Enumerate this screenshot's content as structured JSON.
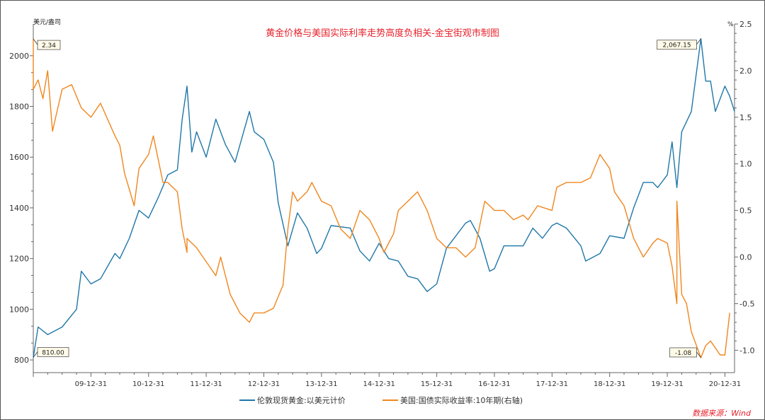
{
  "chart_data": {
    "type": "line",
    "title": "黄金价格与美国实际利率走势高度负相关-金宝街观市制图",
    "left_axis": {
      "unit_label": "美元/盎司",
      "ylim": [
        750,
        2125
      ],
      "ticks": [
        800,
        1000,
        1200,
        1400,
        1600,
        1800,
        2000
      ],
      "tick_labels": [
        "800",
        "1000",
        "1200",
        "1400",
        "1600",
        "1800",
        "2000"
      ]
    },
    "right_axis": {
      "unit_label": "%",
      "ylim": [
        -1.24,
        2.5
      ],
      "ticks": [
        -1.0,
        -0.5,
        0.0,
        0.5,
        1.0,
        1.5,
        2.0,
        2.5
      ],
      "tick_labels": [
        "-1.0",
        "-0.5",
        "0.0",
        "0.5",
        "1.0",
        "1.5",
        "2.0",
        "2.5"
      ]
    },
    "x_axis": {
      "range": [
        "2009-01",
        "2021-02"
      ],
      "tick_labels": [
        "09-12-31",
        "10-12-31",
        "11-12-31",
        "12-12-31",
        "13-12-31",
        "14-12-31",
        "15-12-31",
        "16-12-31",
        "17-12-31",
        "18-12-31",
        "19-12-31",
        "20-12-31"
      ]
    },
    "grid": false,
    "legend_placement": "bottom",
    "series": [
      {
        "name": "伦敦现货黄金:以美元计价",
        "axis": "left",
        "color": "#1f77a8",
        "x": [
          "2009-01",
          "2009-02",
          "2009-04",
          "2009-07",
          "2009-10",
          "2009-11",
          "2010-01",
          "2010-03",
          "2010-06",
          "2010-07",
          "2010-09",
          "2010-11",
          "2011-01",
          "2011-03",
          "2011-05",
          "2011-07",
          "2011-08",
          "2011-09",
          "2011-10",
          "2011-11",
          "2012-01",
          "2012-03",
          "2012-05",
          "2012-07",
          "2012-10",
          "2012-11",
          "2013-01",
          "2013-03",
          "2013-04",
          "2013-06",
          "2013-08",
          "2013-10",
          "2013-12",
          "2014-01",
          "2014-03",
          "2014-07",
          "2014-09",
          "2014-11",
          "2015-01",
          "2015-03",
          "2015-05",
          "2015-07",
          "2015-09",
          "2015-11",
          "2016-01",
          "2016-03",
          "2016-07",
          "2016-08",
          "2016-10",
          "2016-12",
          "2017-01",
          "2017-03",
          "2017-07",
          "2017-09",
          "2017-11",
          "2018-01",
          "2018-02",
          "2018-04",
          "2018-07",
          "2018-08",
          "2018-11",
          "2019-01",
          "2019-04",
          "2019-06",
          "2019-08",
          "2019-10",
          "2019-11",
          "2020-01",
          "2020-02",
          "2020-03",
          "2020-04",
          "2020-06",
          "2020-08",
          "2020-09",
          "2020-10",
          "2020-11",
          "2021-01",
          "2021-02",
          "2021-03"
        ],
        "values": [
          810,
          930,
          900,
          930,
          1000,
          1150,
          1100,
          1120,
          1220,
          1200,
          1280,
          1390,
          1360,
          1440,
          1530,
          1550,
          1750,
          1880,
          1620,
          1700,
          1600,
          1750,
          1650,
          1580,
          1780,
          1700,
          1670,
          1580,
          1420,
          1250,
          1380,
          1320,
          1220,
          1240,
          1330,
          1320,
          1230,
          1190,
          1260,
          1200,
          1190,
          1130,
          1120,
          1070,
          1100,
          1240,
          1340,
          1350,
          1280,
          1150,
          1160,
          1250,
          1250,
          1320,
          1280,
          1330,
          1340,
          1320,
          1250,
          1190,
          1220,
          1290,
          1280,
          1400,
          1500,
          1500,
          1480,
          1530,
          1660,
          1480,
          1700,
          1780,
          2067.15,
          1900,
          1900,
          1780,
          1880,
          1840,
          1780
        ]
      },
      {
        "name": "美国:国债实际收益率:10年期(右轴)",
        "axis": "right",
        "color": "#f0861e",
        "x": [
          "2009-01",
          "2009-01",
          "2009-02",
          "2009-03",
          "2009-04",
          "2009-05",
          "2009-07",
          "2009-09",
          "2009-11",
          "2010-01",
          "2010-03",
          "2010-06",
          "2010-07",
          "2010-08",
          "2010-10",
          "2010-11",
          "2011-01",
          "2011-02",
          "2011-04",
          "2011-05",
          "2011-07",
          "2011-08",
          "2011-09",
          "2011-09",
          "2011-11",
          "2012-01",
          "2012-03",
          "2012-04",
          "2012-06",
          "2012-08",
          "2012-10",
          "2012-11",
          "2013-01",
          "2013-03",
          "2013-05",
          "2013-06",
          "2013-07",
          "2013-08",
          "2013-10",
          "2013-11",
          "2014-01",
          "2014-03",
          "2014-05",
          "2014-07",
          "2014-09",
          "2014-11",
          "2015-01",
          "2015-02",
          "2015-04",
          "2015-05",
          "2015-07",
          "2015-09",
          "2015-11",
          "2016-01",
          "2016-03",
          "2016-05",
          "2016-07",
          "2016-09",
          "2016-11",
          "2017-01",
          "2017-03",
          "2017-05",
          "2017-07",
          "2017-08",
          "2017-10",
          "2018-01",
          "2018-02",
          "2018-04",
          "2018-07",
          "2018-09",
          "2018-11",
          "2019-01",
          "2019-02",
          "2019-04",
          "2019-06",
          "2019-08",
          "2019-10",
          "2019-11",
          "2020-01",
          "2020-02",
          "2020-03",
          "2020-03",
          "2020-04",
          "2020-05",
          "2020-06",
          "2020-08",
          "2020-09",
          "2020-10",
          "2020-12",
          "2021-01",
          "2021-02"
        ],
        "values": [
          2.34,
          1.8,
          1.9,
          1.7,
          2.0,
          1.35,
          1.8,
          1.85,
          1.6,
          1.5,
          1.65,
          1.3,
          1.2,
          0.9,
          0.55,
          0.95,
          1.1,
          1.3,
          0.8,
          0.8,
          0.7,
          0.3,
          0.05,
          0.2,
          0.1,
          -0.05,
          -0.2,
          0.0,
          -0.4,
          -0.6,
          -0.7,
          -0.6,
          -0.6,
          -0.55,
          -0.3,
          0.3,
          0.7,
          0.6,
          0.7,
          0.8,
          0.6,
          0.55,
          0.3,
          0.2,
          0.5,
          0.4,
          0.2,
          0.05,
          0.25,
          0.5,
          0.6,
          0.7,
          0.5,
          0.2,
          0.1,
          0.1,
          0.0,
          0.1,
          0.6,
          0.5,
          0.5,
          0.4,
          0.45,
          0.4,
          0.55,
          0.5,
          0.75,
          0.8,
          0.8,
          0.85,
          1.1,
          0.95,
          0.7,
          0.55,
          0.2,
          0.0,
          0.15,
          0.2,
          0.15,
          -0.1,
          -0.5,
          0.6,
          -0.4,
          -0.5,
          -0.8,
          -1.08,
          -0.95,
          -0.9,
          -1.05,
          -1.05,
          -0.6
        ]
      }
    ],
    "annotations": [
      {
        "text": "2.34",
        "series": 1,
        "x": "2009-01",
        "y": 2.34
      },
      {
        "text": "810.00",
        "series": 0,
        "x": "2009-01",
        "y": 810
      },
      {
        "text": "2,067.15",
        "series": 0,
        "x": "2020-08",
        "y": 2067.15
      },
      {
        "text": "-1.08",
        "series": 1,
        "x": "2020-08",
        "y": -1.08
      }
    ]
  },
  "source": "数据来源：Wind"
}
